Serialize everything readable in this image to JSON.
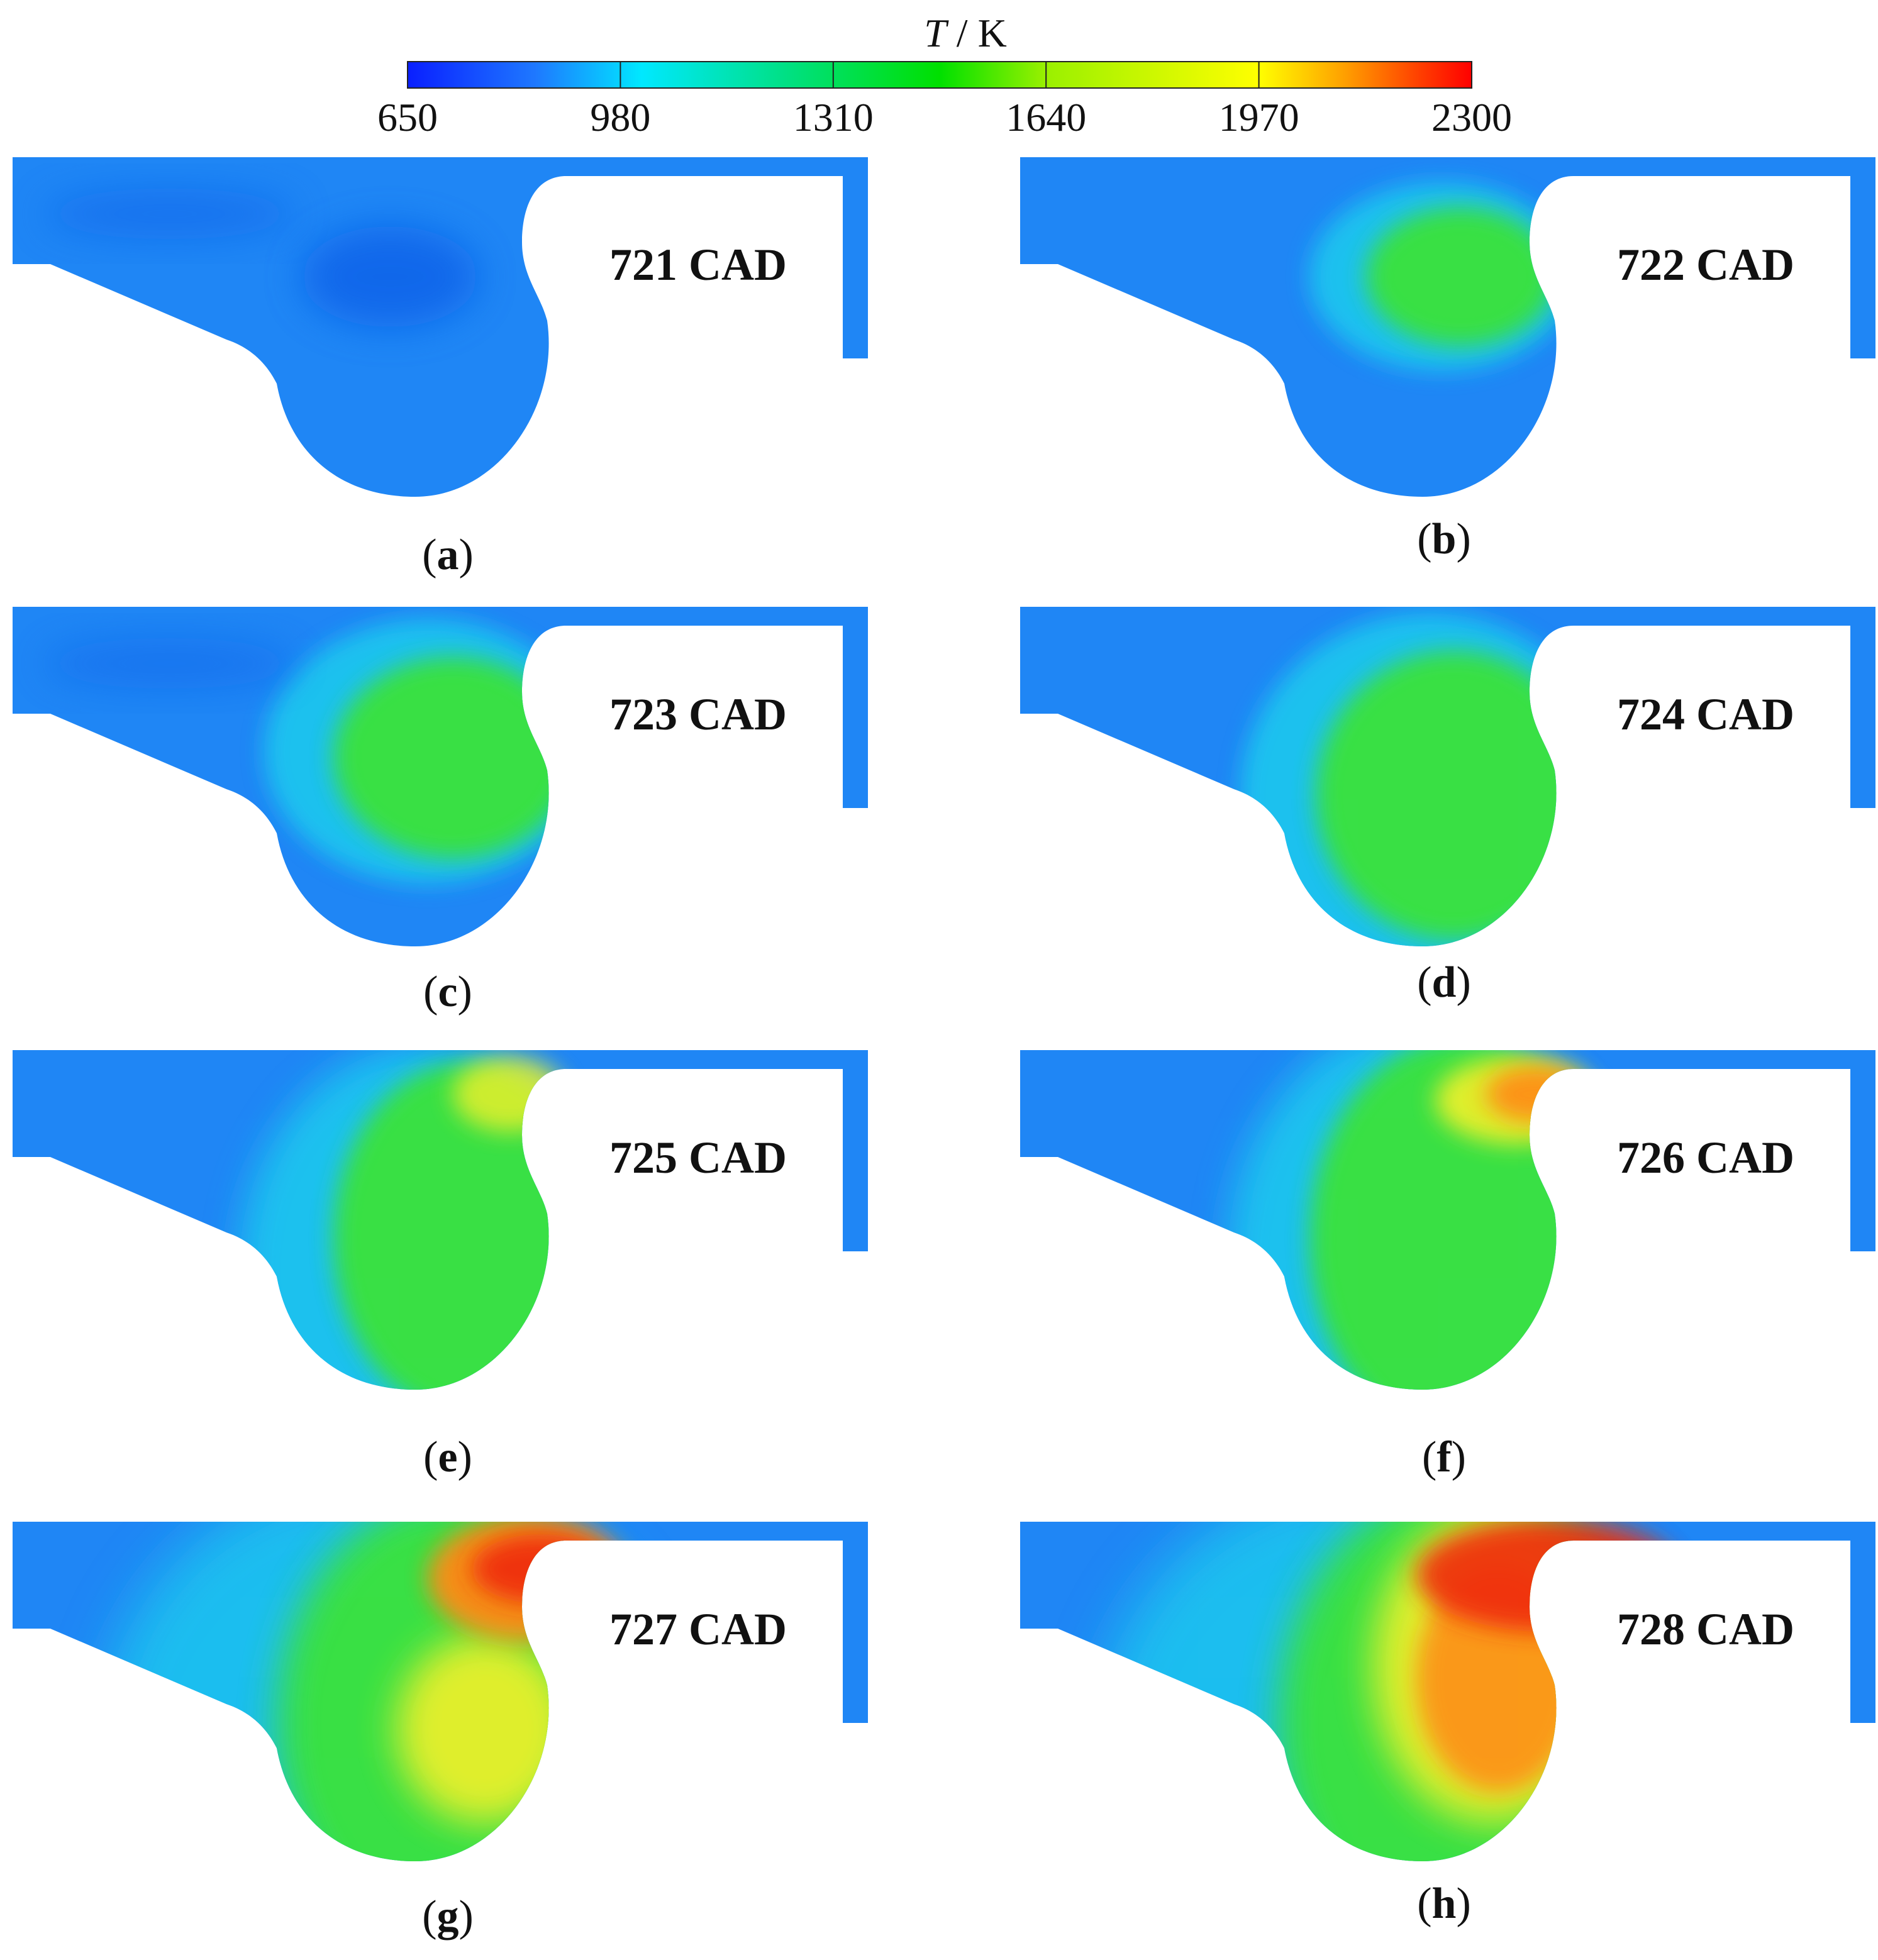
{
  "colorbar": {
    "variable": "T",
    "unit": "/ K",
    "ticks": [
      "650",
      "980",
      "1310",
      "1640",
      "1970",
      "2300"
    ],
    "range": [
      650,
      2300
    ],
    "gradient": [
      "#0a1fff",
      "#1e78ff",
      "#00e8ff",
      "#00e080",
      "#00e000",
      "#9af000",
      "#ffff00",
      "#ffa000",
      "#ff4000",
      "#ff0000"
    ]
  },
  "panels": [
    {
      "letter": "a",
      "cad": "721 CAD"
    },
    {
      "letter": "b",
      "cad": "722 CAD"
    },
    {
      "letter": "c",
      "cad": "723 CAD"
    },
    {
      "letter": "d",
      "cad": "724 CAD"
    },
    {
      "letter": "e",
      "cad": "725 CAD"
    },
    {
      "letter": "f",
      "cad": "726 CAD"
    },
    {
      "letter": "g",
      "cad": "727 CAD"
    },
    {
      "letter": "h",
      "cad": "728 CAD"
    }
  ],
  "colors": {
    "cold": "#1f86f5",
    "cold_deep": "#1060e8",
    "cool": "#1cc8ee",
    "green": "#3ae23a",
    "yellow": "#f2f02a",
    "orange": "#ff8a12",
    "red": "#ef2a10"
  }
}
